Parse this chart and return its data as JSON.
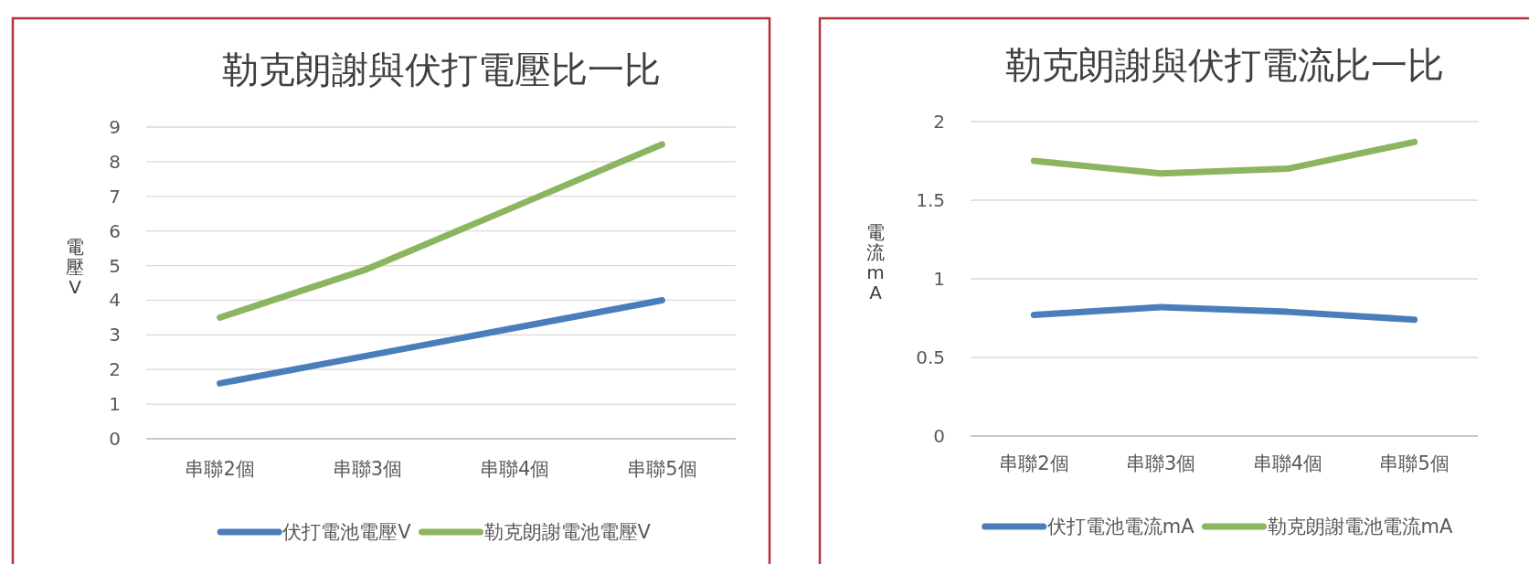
{
  "chart_data": [
    {
      "type": "line",
      "title": "勒克朗謝與伏打電壓比一比",
      "ylabel": "電壓V",
      "categories": [
        "串聯2個",
        "串聯3個",
        "串聯4個",
        "串聯5個"
      ],
      "series": [
        {
          "name": "伏打電池電壓V",
          "color": "#4a7ebb",
          "values": [
            1.6,
            2.4,
            3.2,
            4.0
          ]
        },
        {
          "name": "勒克朗謝電池電壓V",
          "color": "#8cb560",
          "values": [
            3.5,
            4.9,
            6.7,
            8.5
          ]
        }
      ],
      "ylim": [
        0,
        9
      ],
      "yticks": [
        0,
        1,
        2,
        3,
        4,
        5,
        6,
        7,
        8,
        9
      ],
      "grid": "y",
      "legend": "bottom"
    },
    {
      "type": "line",
      "title": "勒克朗謝與伏打電流比一比",
      "ylabel": "電流mA",
      "categories": [
        "串聯2個",
        "串聯3個",
        "串聯4個",
        "串聯5個"
      ],
      "series": [
        {
          "name": "伏打電池電流mA",
          "color": "#4a7ebb",
          "values": [
            0.77,
            0.82,
            0.79,
            0.74
          ]
        },
        {
          "name": "勒克朗謝電池電流mA",
          "color": "#8cb560",
          "values": [
            1.75,
            1.67,
            1.7,
            1.87
          ]
        }
      ],
      "ylim": [
        0,
        2
      ],
      "yticks": [
        0,
        0.5,
        1,
        1.5,
        2
      ],
      "grid": "y",
      "legend": "bottom"
    }
  ]
}
